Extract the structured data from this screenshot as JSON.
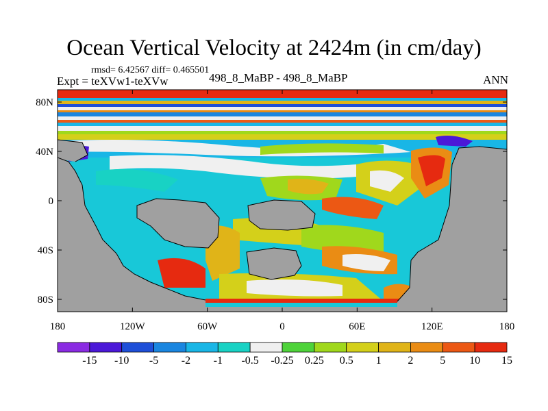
{
  "title": "Ocean Vertical Velocity at 2424m (in cm/day)",
  "stats": "rmsd= 6.42567 diff= 0.465501",
  "experiment": "Expt = teXVw1-teXVw",
  "experiment_names": "498_8_MaBP - 498_8_MaBP",
  "season": "ANN",
  "map": {
    "projection": "cylindrical-equidistant",
    "lon_range": [
      -180,
      180
    ],
    "lat_range": [
      -90,
      90
    ],
    "land_color": "#a0a0a0",
    "lat_ticks": [
      {
        "value": 80,
        "label": "80N"
      },
      {
        "value": 40,
        "label": "40N"
      },
      {
        "value": 0,
        "label": "0"
      },
      {
        "value": -40,
        "label": "40S"
      },
      {
        "value": -80,
        "label": "80S"
      }
    ],
    "lon_ticks": [
      {
        "value": -180,
        "label": "180"
      },
      {
        "value": -120,
        "label": "120W"
      },
      {
        "value": -60,
        "label": "60W"
      },
      {
        "value": 0,
        "label": "0"
      },
      {
        "value": 60,
        "label": "60E"
      },
      {
        "value": 120,
        "label": "120E"
      },
      {
        "value": 180,
        "label": "180"
      }
    ]
  },
  "colorbar": {
    "labels": [
      "-15",
      "-10",
      "-5",
      "-2",
      "-1",
      "-0.5",
      "-0.25",
      "0.25",
      "0.5",
      "1",
      "2",
      "5",
      "10",
      "15"
    ],
    "colors": [
      "#8a2be2",
      "#4b18d8",
      "#1e4fd8",
      "#1a86e0",
      "#19b6e6",
      "#18d2c4",
      "#f0f0f0",
      "#4ed33a",
      "#a0d81c",
      "#d4d01a",
      "#e0b418",
      "#ea8c14",
      "#ec5814",
      "#e62a10"
    ]
  }
}
